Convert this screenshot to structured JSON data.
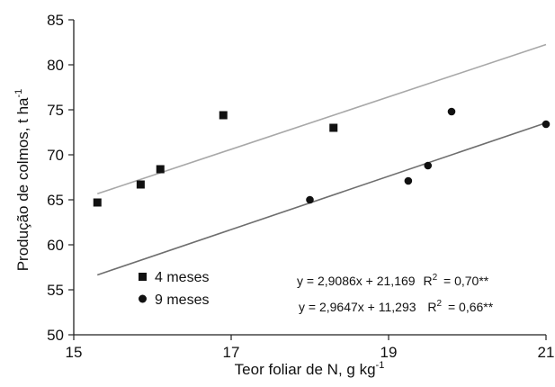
{
  "chart_data": {
    "type": "scatter",
    "xlabel": "Teor foliar de N, g kg",
    "xlabel_sup": "-1",
    "ylabel": "Produção de colmos, t ha",
    "ylabel_sup": "-1",
    "xlim": [
      15,
      21
    ],
    "ylim": [
      50,
      85
    ],
    "xticks": [
      15,
      17,
      19,
      21
    ],
    "yticks": [
      50,
      55,
      60,
      65,
      70,
      75,
      80,
      85
    ],
    "grid": false,
    "legend_position": "bottom-left",
    "series": [
      {
        "name": "4 meses",
        "marker": "square",
        "color": "#111111",
        "x": [
          15.3,
          15.85,
          16.1,
          16.9,
          18.3
        ],
        "y": [
          64.7,
          66.7,
          68.4,
          74.4,
          73.0
        ],
        "fit": {
          "slope": 2.9086,
          "intercept": 21.169,
          "color": "#a8a8a8",
          "x_range": [
            15.3,
            21.0
          ]
        },
        "equation": "y = 2,9086x + 21,169",
        "r2": "= 0,70**"
      },
      {
        "name": "9 meses",
        "marker": "circle",
        "color": "#111111",
        "x": [
          18.0,
          19.25,
          19.5,
          19.8,
          21.0
        ],
        "y": [
          65.0,
          67.1,
          68.8,
          74.8,
          73.4
        ],
        "fit": {
          "slope": 2.9647,
          "intercept": 11.293,
          "color": "#6e6e6e",
          "x_range": [
            15.3,
            21.0
          ]
        },
        "equation": "y = 2,9647x + 11,293",
        "r2": "= 0,66**"
      }
    ]
  }
}
